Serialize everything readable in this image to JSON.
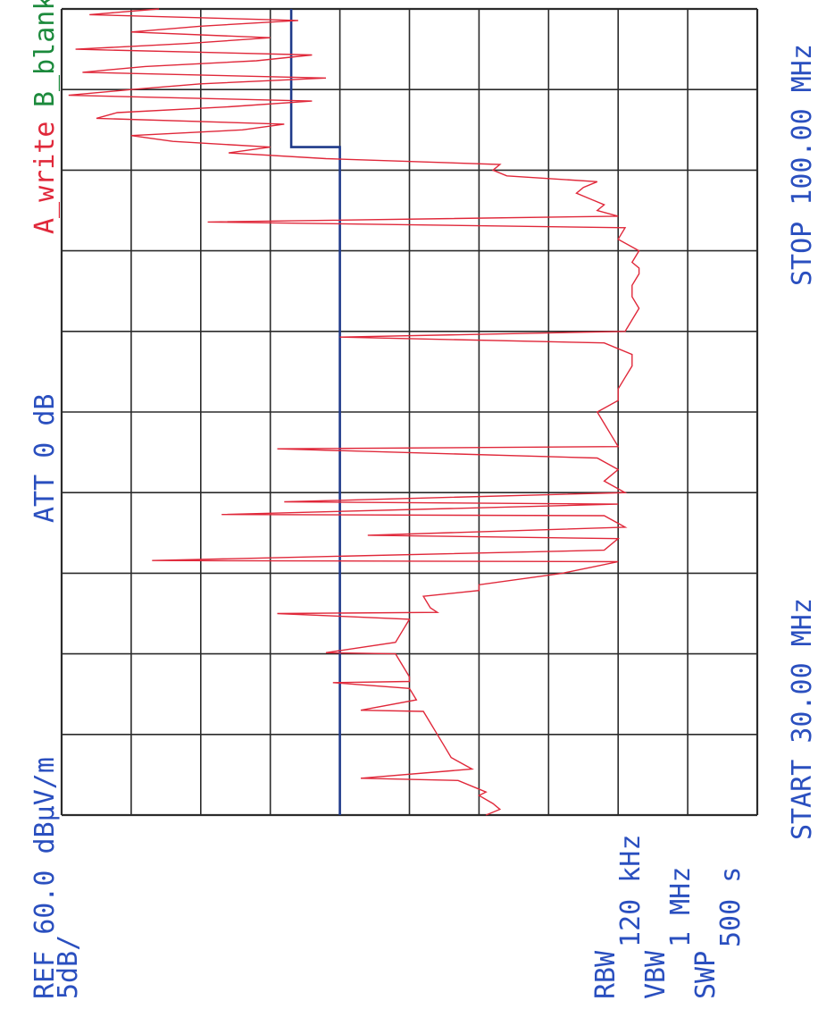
{
  "header": {
    "ref": "REF 60.0 dBμV/m",
    "scale": "5dB/",
    "att": "ATT 0 dB",
    "trace_a": "A_write",
    "trace_b": "B_blank"
  },
  "footer": {
    "start": "START 30.00 MHz",
    "stop": "STOP 100.00 MHz"
  },
  "settings": {
    "rbw_label": "RBW",
    "rbw_value": "120 kHz",
    "vbw_label": "VBW",
    "vbw_value": "1 MHz",
    "swp_label": "SWP",
    "swp_value": "500 s"
  },
  "colors": {
    "grid": "#2b2b2b",
    "trace": "#e0283a",
    "limit": "#1f3a8a",
    "text": "#2a4fbf",
    "trace_b_label": "#1c8a3c"
  },
  "chart_data": {
    "type": "line",
    "x_unit": "MHz",
    "y_unit": "dBμV/m",
    "xlim": [
      30,
      100
    ],
    "ylim": [
      10,
      60
    ],
    "grid": true,
    "series": [
      {
        "name": "A_write",
        "x": [
          30.0,
          30.5,
          31.0,
          31.7,
          32.0,
          33.0,
          33.2,
          34.0,
          35.0,
          36.0,
          37.0,
          38.0,
          39.0,
          39.1,
          40.0,
          41.0,
          41.5,
          41.6,
          42.0,
          43.0,
          44.0,
          44.1,
          45.0,
          46.0,
          47.0,
          47.5,
          47.6,
          48.0,
          49.0,
          49.5,
          50.0,
          51.0,
          52.0,
          52.1,
          53.0,
          54.0,
          54.3,
          55.0,
          56.0,
          56.1,
          57.0,
          57.2,
          58.0,
          59.0,
          60.0,
          61.0,
          61.8,
          62.0,
          63.0,
          64.0,
          65.0,
          66.0,
          67.0,
          68.0,
          69.0,
          70.0,
          71.0,
          71.5,
          72.0,
          73.0,
          74.0,
          75.0,
          76.0,
          77.0,
          77.5,
          78.0,
          79.0,
          80.0,
          81.0,
          81.5,
          82.0,
          82.5,
          83.0,
          83.5,
          84.0,
          84.5,
          85.0,
          85.5,
          86.0,
          86.5,
          87.0,
          87.5,
          88.0,
          88.5,
          89.0,
          89.5,
          90.0,
          90.5,
          91.0,
          91.5,
          92.0,
          92.5,
          93.0,
          93.5,
          94.0,
          94.5,
          95.0,
          95.5,
          96.0,
          96.5,
          97.0,
          97.5,
          98.0,
          98.5,
          99.0,
          99.5,
          100.0
        ],
        "y": [
          29.5,
          28.5,
          29.0,
          30.0,
          29.5,
          31.5,
          38.5,
          30.5,
          32.0,
          32.5,
          33.0,
          33.5,
          34.0,
          38.5,
          34.5,
          35.0,
          40.5,
          35.0,
          35.0,
          35.5,
          36.0,
          41.0,
          36.0,
          35.5,
          35.0,
          44.5,
          33.0,
          33.5,
          34.0,
          30.0,
          30.0,
          24.0,
          20.0,
          53.5,
          21.0,
          20.0,
          38.0,
          19.5,
          21.0,
          48.5,
          20.0,
          44.0,
          19.5,
          21.0,
          20.0,
          21.5,
          44.5,
          20.0,
          20.5,
          21.0,
          21.5,
          20.0,
          20.0,
          19.5,
          19.0,
          19.0,
          21.0,
          40.0,
          19.5,
          19.0,
          18.5,
          19.0,
          19.0,
          18.5,
          18.5,
          19.0,
          18.5,
          20.0,
          19.5,
          49.5,
          20.0,
          21.5,
          21.0,
          22.0,
          23.0,
          22.5,
          21.5,
          28.0,
          29.0,
          28.5,
          41.0,
          48.0,
          45.0,
          52.0,
          55.0,
          47.0,
          44.0,
          57.5,
          56.0,
          48.0,
          42.0,
          59.5,
          55.0,
          50.0,
          41.0,
          58.5,
          54.0,
          46.0,
          42.0,
          59.0,
          51.0,
          45.0,
          55.0,
          50.0,
          43.0,
          58.0,
          53.0
        ]
      },
      {
        "name": "limit",
        "x": [
          30.0,
          88.0,
          88.0,
          100.0
        ],
        "y": [
          40.0,
          40.0,
          43.5,
          43.5
        ]
      }
    ]
  }
}
